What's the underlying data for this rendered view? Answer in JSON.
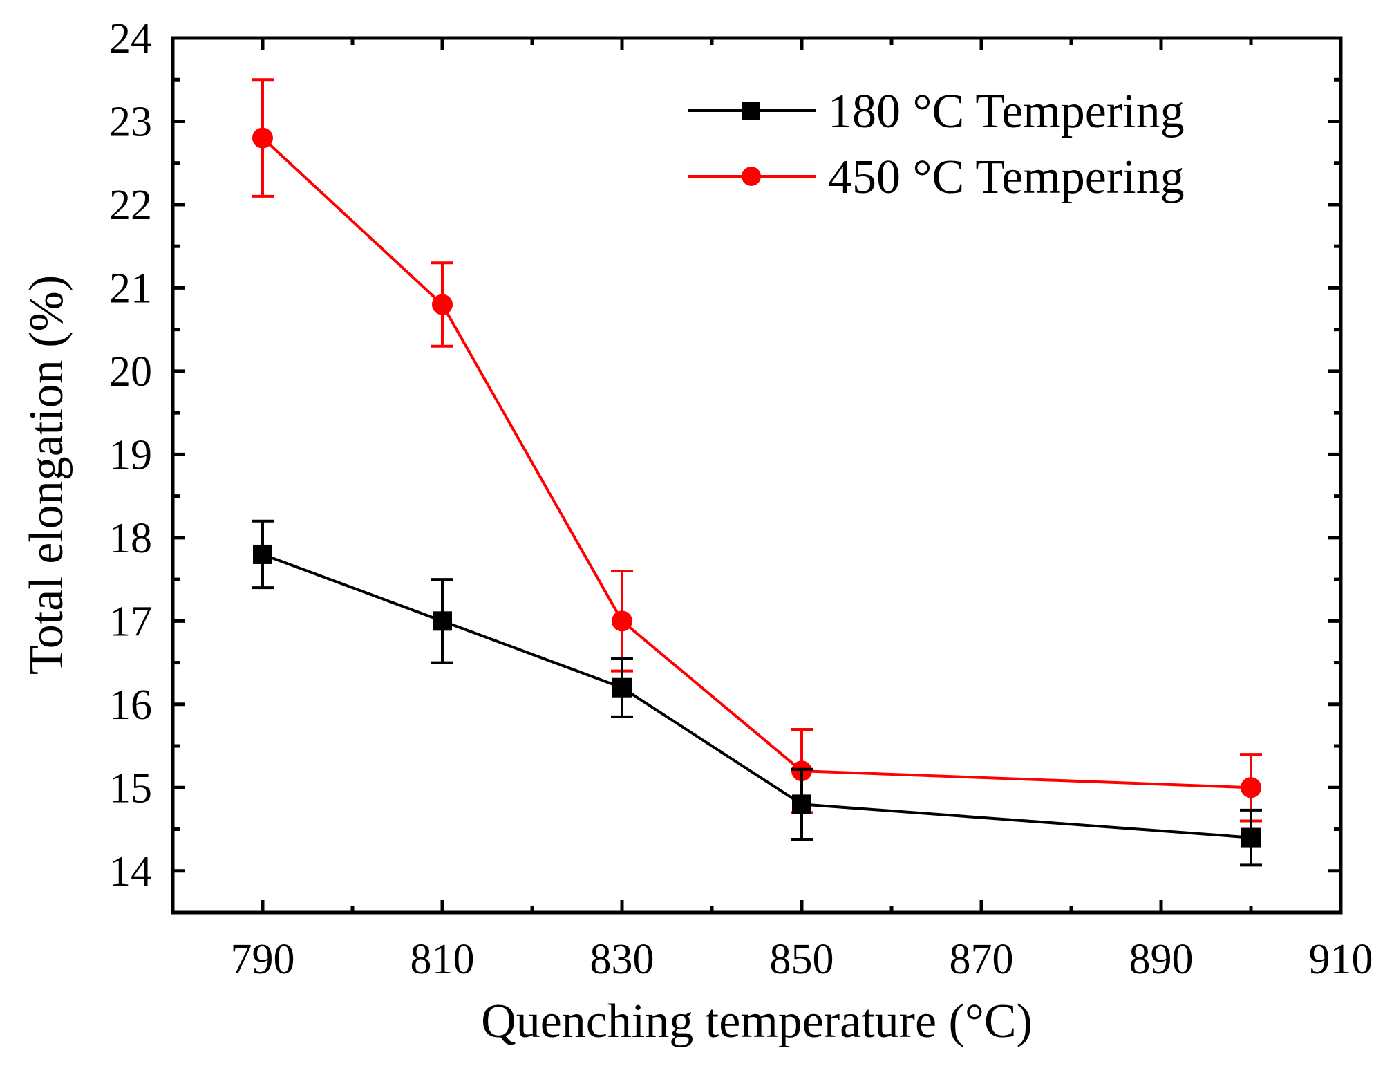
{
  "chart_data": {
    "type": "line",
    "title": "",
    "xlabel": "Quenching temperature (°C)",
    "ylabel": "Total elongation (%)",
    "xlim": [
      780,
      910
    ],
    "ylim": [
      13.5,
      24
    ],
    "x_ticks": [
      790,
      810,
      830,
      850,
      870,
      890,
      910
    ],
    "y_ticks": [
      14,
      15,
      16,
      17,
      18,
      19,
      20,
      21,
      22,
      23,
      24
    ],
    "legend_position": "top-right",
    "series": [
      {
        "name": "180 °C Tempering",
        "color": "#000000",
        "marker": "square",
        "x": [
          790,
          810,
          830,
          850,
          900
        ],
        "values": [
          17.8,
          17.0,
          16.2,
          14.8,
          14.4
        ],
        "errors": [
          0.4,
          0.5,
          0.35,
          0.42,
          0.33
        ]
      },
      {
        "name": "450 °C Tempering",
        "color": "#ff0000",
        "marker": "circle",
        "x": [
          790,
          810,
          830,
          850,
          900
        ],
        "values": [
          22.8,
          20.8,
          17.0,
          15.2,
          15.0
        ],
        "errors": [
          0.7,
          0.5,
          0.6,
          0.5,
          0.4
        ]
      }
    ]
  }
}
